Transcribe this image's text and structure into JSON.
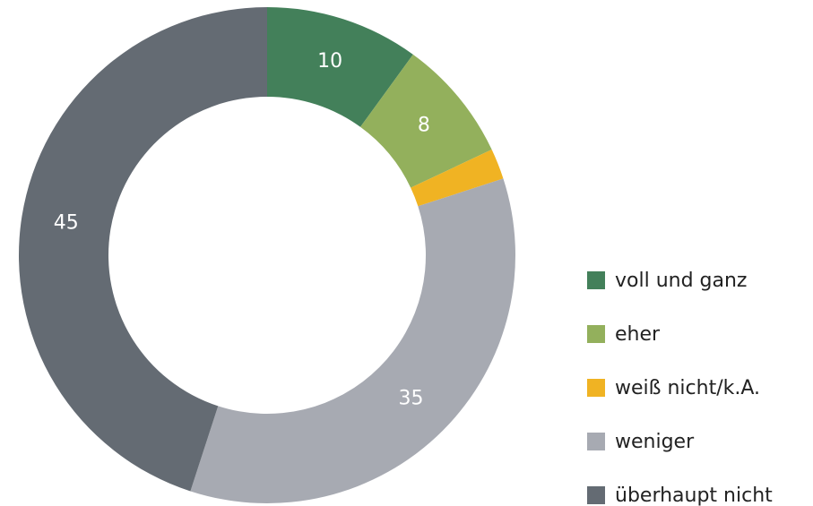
{
  "chart_data": {
    "type": "donut",
    "categories": [
      "voll und ganz",
      "eher",
      "weiß nicht/k.A.",
      "weniger",
      "überhaupt nicht"
    ],
    "values": [
      10,
      8,
      2,
      35,
      45
    ],
    "colors": [
      "#43805a",
      "#93b05c",
      "#f0b323",
      "#a7aab2",
      "#646b73"
    ],
    "legend": "right"
  }
}
